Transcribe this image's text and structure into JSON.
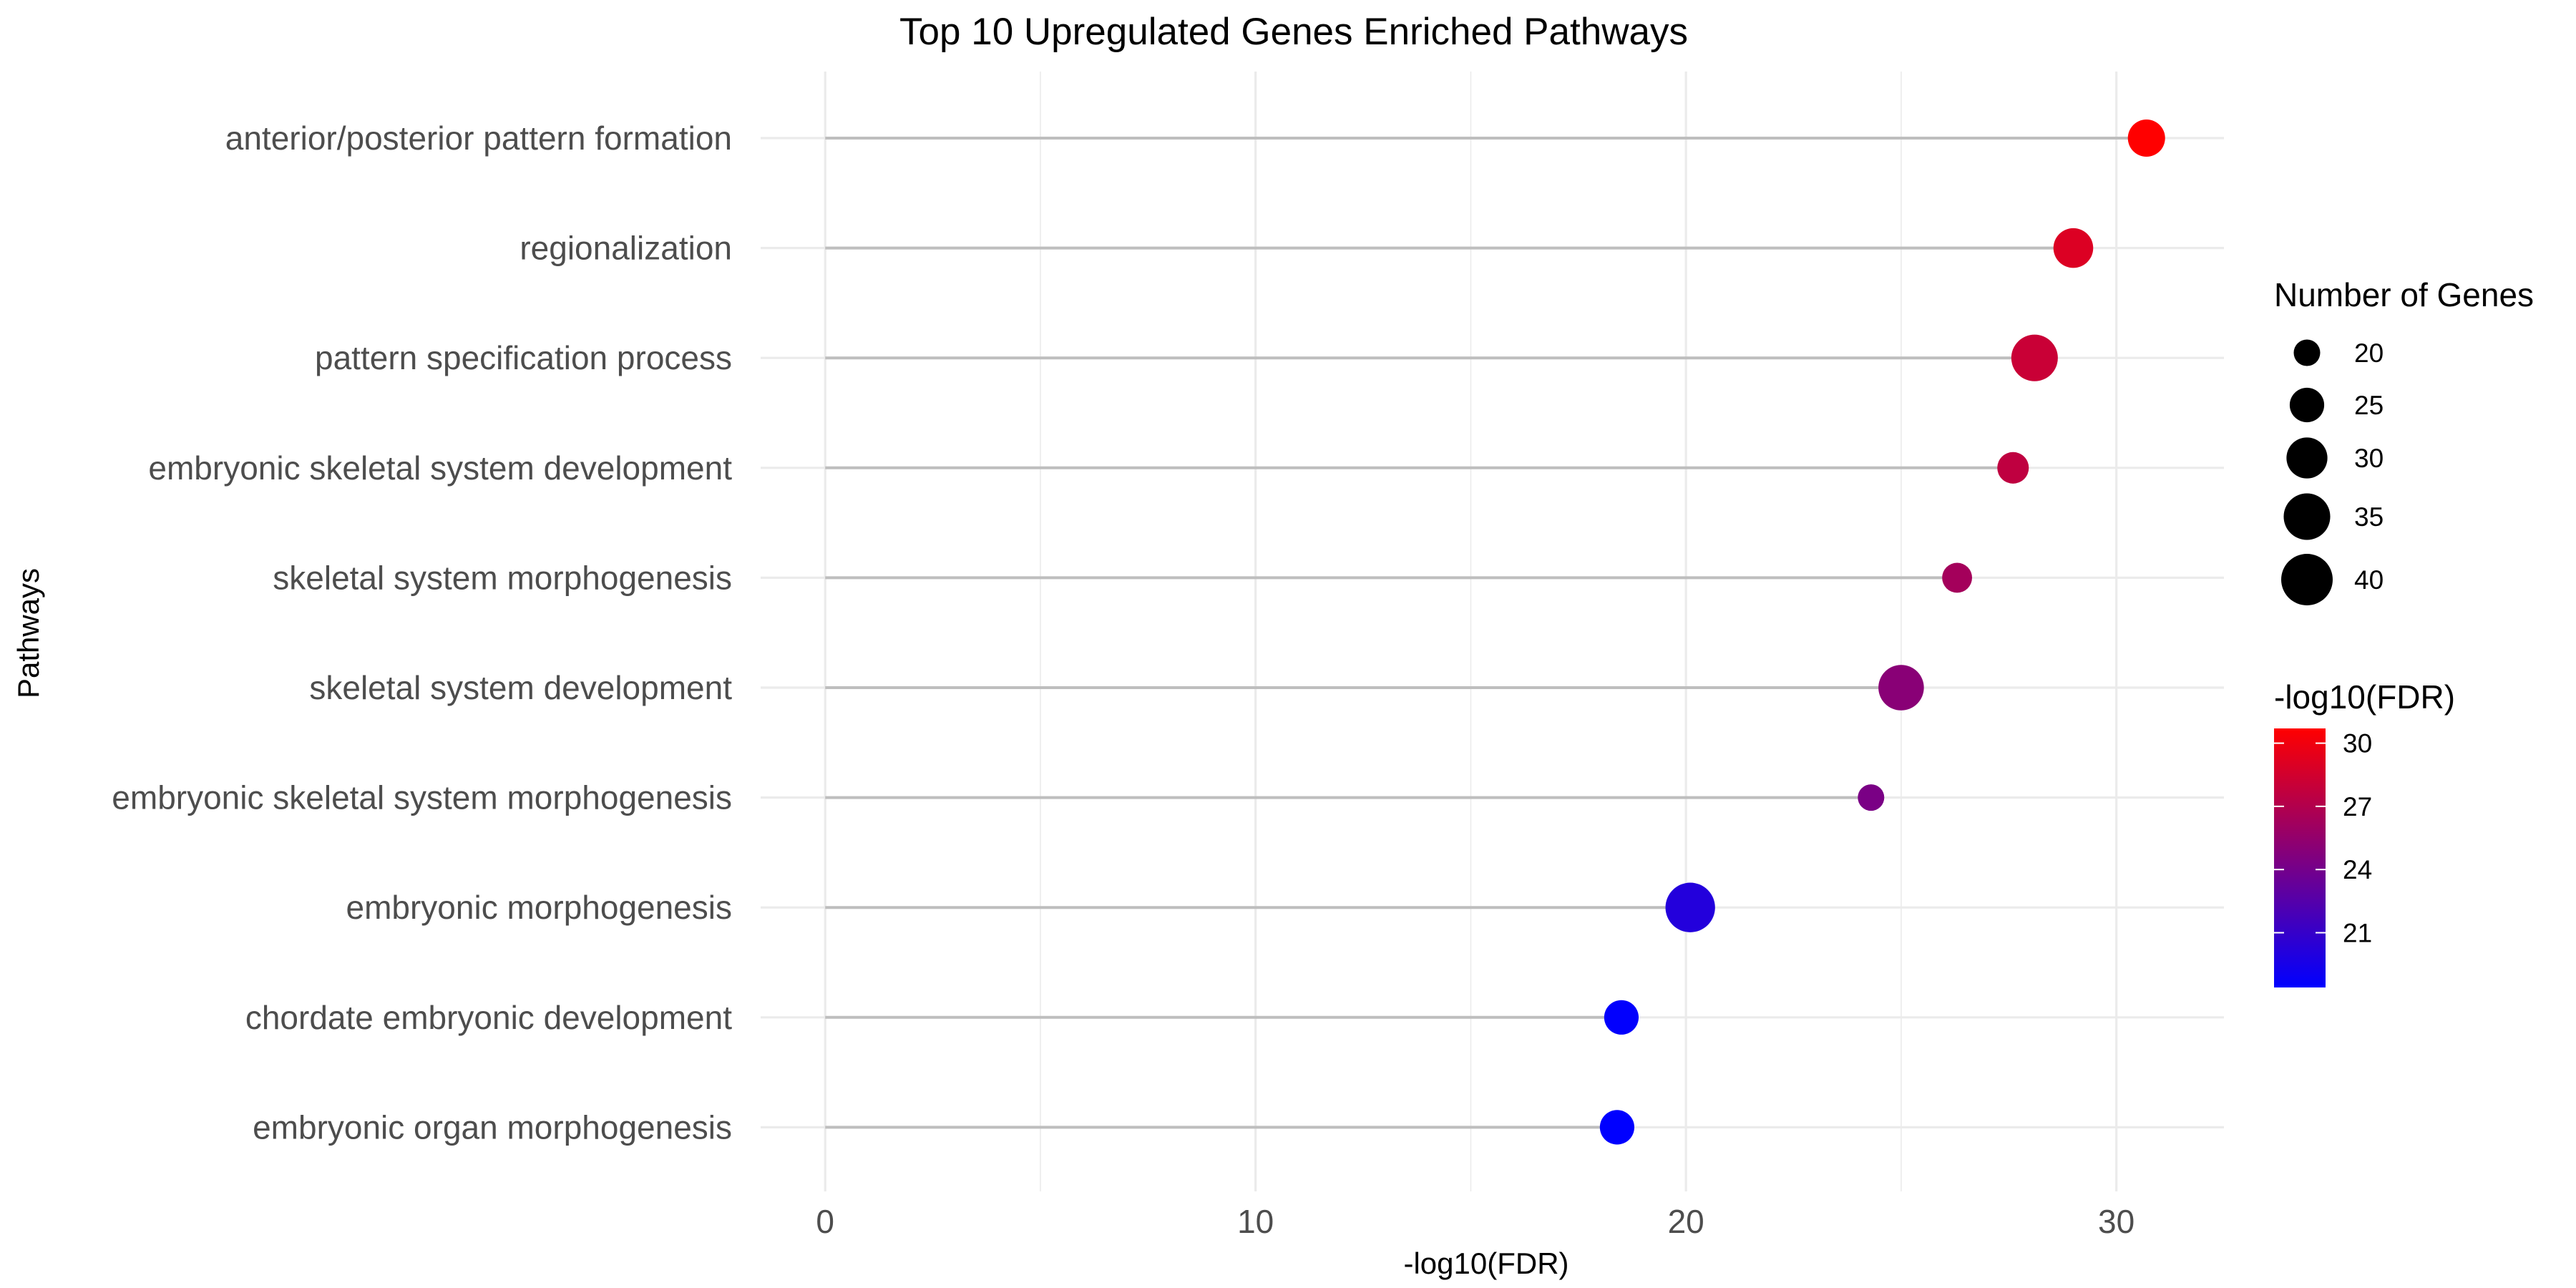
{
  "chart_data": {
    "type": "scatter",
    "title": "Top 10 Upregulated Genes Enriched Pathways",
    "xlabel": "-log10(FDR)",
    "ylabel": "Pathways",
    "xlim": [
      -1.5,
      32.5
    ],
    "x_ticks": [
      0,
      10,
      20,
      30
    ],
    "grid": true,
    "categories": [
      "anterior/posterior pattern formation",
      "regionalization",
      "pattern specification process",
      "embryonic skeletal system development",
      "skeletal system morphogenesis",
      "skeletal system development",
      "embryonic skeletal system morphogenesis",
      "embryonic morphogenesis",
      "chordate embryonic development",
      "embryonic organ morphogenesis"
    ],
    "values": [
      30.7,
      29.0,
      28.1,
      27.6,
      26.3,
      25.0,
      24.3,
      20.1,
      18.5,
      18.4
    ],
    "gene_counts": [
      27,
      29,
      35,
      23,
      22,
      34,
      17,
      38,
      25,
      25
    ],
    "size_legend": {
      "title": "Number of Genes",
      "position": "right",
      "breaks": [
        20,
        25,
        30,
        35,
        40
      ],
      "labels": [
        "20",
        "25",
        "30",
        "35",
        "40"
      ]
    },
    "color_legend": {
      "title": "-log10(FDR)",
      "position": "right",
      "range": [
        18.4,
        30.7
      ],
      "breaks": [
        21,
        24,
        27,
        30
      ],
      "labels": [
        "21",
        "24",
        "27",
        "30"
      ],
      "low_color": "#0000ff",
      "high_color": "#ff0000"
    },
    "segment_color": "#bebebe",
    "grid_color": "#ebebeb"
  }
}
